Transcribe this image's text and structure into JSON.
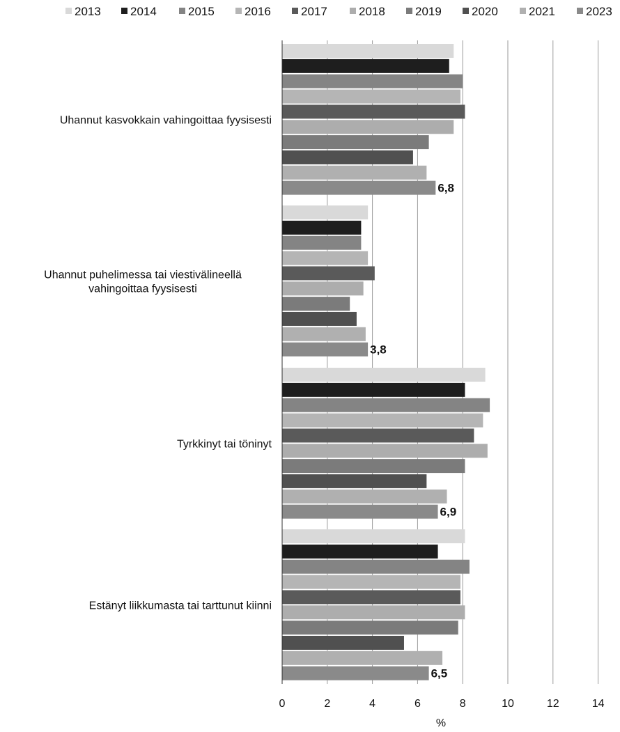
{
  "chart_data": {
    "type": "bar",
    "orientation": "horizontal",
    "xlabel": "%",
    "xlim": [
      0,
      14
    ],
    "x_ticks": [
      0,
      2,
      4,
      6,
      8,
      10,
      12,
      14
    ],
    "grid": "vertical",
    "legend_position": "top",
    "categories": [
      "Uhannut kasvokkain vahingoittaa fyysisesti",
      "Uhannut puhelimessa tai viestivälineellä vahingoittaa fyysisesti",
      "Tyrkkinyt tai töninyt",
      "Estänyt liikkumasta tai tarttunut kiinni"
    ],
    "series": [
      {
        "name": "2013",
        "color": "#d9d9d9",
        "values": [
          7.6,
          3.8,
          9.0,
          8.1
        ]
      },
      {
        "name": "2014",
        "color": "#1e1e1e",
        "values": [
          7.4,
          3.5,
          8.1,
          6.9
        ]
      },
      {
        "name": "2015",
        "color": "#848484",
        "values": [
          8.0,
          3.5,
          9.2,
          8.3
        ]
      },
      {
        "name": "2016",
        "color": "#b5b5b5",
        "values": [
          7.9,
          3.8,
          8.9,
          7.9
        ]
      },
      {
        "name": "2017",
        "color": "#5a5a5a",
        "values": [
          8.1,
          4.1,
          8.5,
          7.9
        ]
      },
      {
        "name": "2018",
        "color": "#adadad",
        "values": [
          7.6,
          3.6,
          9.1,
          8.1
        ]
      },
      {
        "name": "2019",
        "color": "#7b7b7b",
        "values": [
          6.5,
          3.0,
          8.1,
          7.8
        ]
      },
      {
        "name": "2020",
        "color": "#505050",
        "values": [
          5.8,
          3.3,
          6.4,
          5.4
        ]
      },
      {
        "name": "2021",
        "color": "#b0b0b0",
        "values": [
          6.4,
          3.7,
          7.3,
          7.1
        ]
      },
      {
        "name": "2023",
        "color": "#8a8a8a",
        "values": [
          6.8,
          3.8,
          6.9,
          6.5
        ]
      }
    ],
    "data_labels": [
      "6,8",
      "3,8",
      "6,9",
      "6,5"
    ]
  }
}
